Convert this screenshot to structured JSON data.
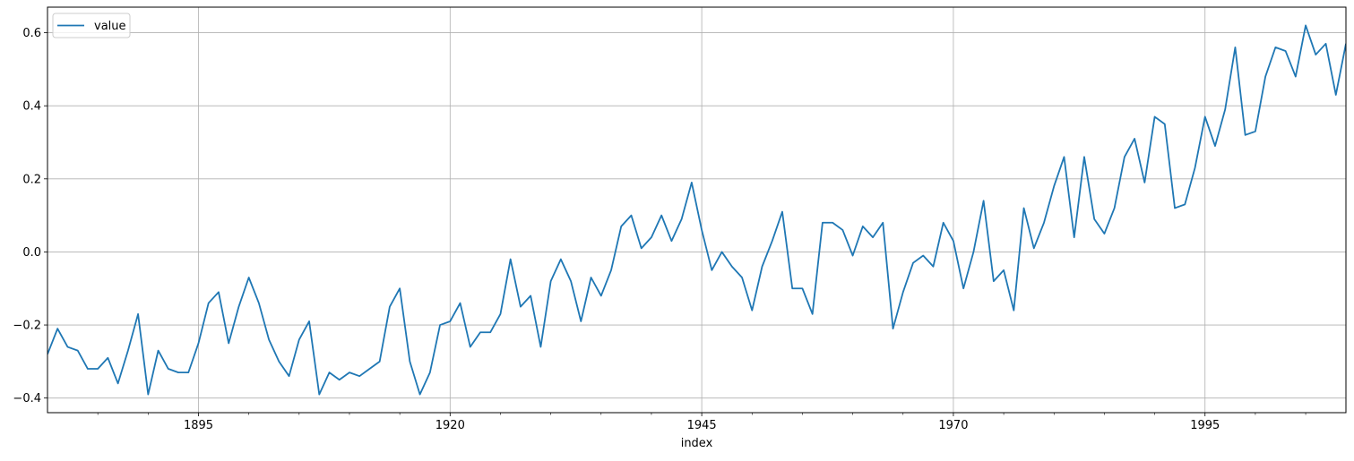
{
  "chart_data": {
    "type": "line",
    "title": "",
    "xlabel": "index",
    "ylabel": "",
    "xlim": [
      1880,
      2009
    ],
    "ylim": [
      -0.44,
      0.67
    ],
    "grid": true,
    "legend_position": "top-left",
    "x_major_ticks": [
      1895,
      1920,
      1945,
      1970,
      1995
    ],
    "x_tick_labels": [
      "1895",
      "1920",
      "1945",
      "1970",
      "1995"
    ],
    "y_ticks": [
      -0.4,
      -0.2,
      0.0,
      0.2,
      0.4,
      0.6
    ],
    "y_tick_labels": [
      "−0.4",
      "−0.2",
      "0.0",
      "0.2",
      "0.4",
      "0.6"
    ],
    "x_start": 1880,
    "series": [
      {
        "name": "value",
        "color": "#1f77b4",
        "values": [
          -0.28,
          -0.21,
          -0.26,
          -0.27,
          -0.32,
          -0.32,
          -0.29,
          -0.36,
          -0.27,
          -0.17,
          -0.39,
          -0.27,
          -0.32,
          -0.33,
          -0.33,
          -0.25,
          -0.14,
          -0.11,
          -0.25,
          -0.15,
          -0.07,
          -0.14,
          -0.24,
          -0.3,
          -0.34,
          -0.24,
          -0.19,
          -0.39,
          -0.33,
          -0.35,
          -0.33,
          -0.34,
          -0.32,
          -0.3,
          -0.15,
          -0.1,
          -0.3,
          -0.39,
          -0.33,
          -0.2,
          -0.19,
          -0.14,
          -0.26,
          -0.22,
          -0.22,
          -0.17,
          -0.02,
          -0.15,
          -0.12,
          -0.26,
          -0.08,
          -0.02,
          -0.08,
          -0.19,
          -0.07,
          -0.12,
          -0.05,
          0.07,
          0.1,
          0.01,
          0.04,
          0.1,
          0.03,
          0.09,
          0.19,
          0.06,
          -0.05,
          0.0,
          -0.04,
          -0.07,
          -0.16,
          -0.04,
          0.03,
          0.11,
          -0.1,
          -0.1,
          -0.17,
          0.08,
          0.08,
          0.06,
          -0.01,
          0.07,
          0.04,
          0.08,
          -0.21,
          -0.11,
          -0.03,
          -0.01,
          -0.04,
          0.08,
          0.03,
          -0.1,
          0.0,
          0.14,
          -0.08,
          -0.05,
          -0.16,
          0.12,
          0.01,
          0.08,
          0.18,
          0.26,
          0.04,
          0.26,
          0.09,
          0.05,
          0.12,
          0.26,
          0.31,
          0.19,
          0.37,
          0.35,
          0.12,
          0.13,
          0.23,
          0.37,
          0.29,
          0.39,
          0.56,
          0.32,
          0.33,
          0.48,
          0.56,
          0.55,
          0.48,
          0.62,
          0.54,
          0.57,
          0.43,
          0.57
        ]
      }
    ]
  }
}
